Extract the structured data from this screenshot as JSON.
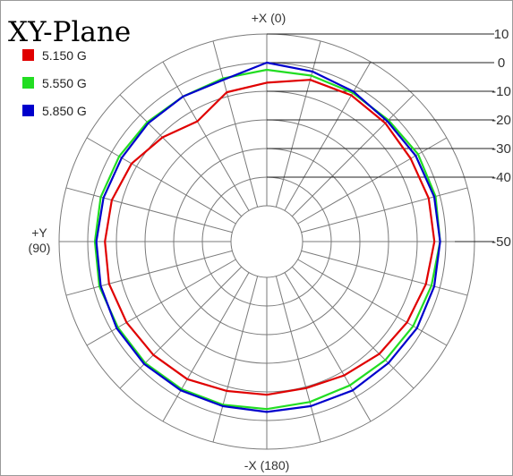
{
  "chart_data": {
    "type": "polar",
    "title": "XY-Plane",
    "direction_labels": {
      "top": "+X (0)",
      "left_line1": "+Y",
      "left_line2": "(90)",
      "bottom": "-X (180)"
    },
    "r_ticks": [
      "10",
      "0",
      "-10",
      "-20",
      "-30",
      "-40",
      "-50"
    ],
    "r_range": [
      -50,
      10
    ],
    "angle_grid_step_deg": 15,
    "grid": true,
    "legend_position": "top-left",
    "series": [
      {
        "name": "5.150 G",
        "color": "#e00000",
        "angles": [
          0,
          15,
          30,
          45,
          60,
          75,
          90,
          105,
          120,
          135,
          150,
          165,
          180,
          195,
          210,
          225,
          240,
          255,
          270,
          285,
          300,
          315,
          330,
          345
        ],
        "values": [
          -7,
          -8.5,
          -14,
          -11,
          -8,
          -6.5,
          -6,
          -5.5,
          -6,
          -6.5,
          -7,
          -8.5,
          -9,
          -9.5,
          -8.5,
          -7,
          -6,
          -5,
          -4,
          -4,
          -4.5,
          -4,
          -3.5,
          -4
        ]
      },
      {
        "name": "5.550 G",
        "color": "#22dd22",
        "angles": [
          0,
          15,
          30,
          45,
          60,
          75,
          90,
          105,
          120,
          135,
          150,
          165,
          180,
          195,
          210,
          225,
          240,
          255,
          270,
          285,
          300,
          315,
          330,
          345
        ],
        "values": [
          -2.5,
          -3.5,
          -4,
          -3.5,
          -3,
          -2.5,
          -2.5,
          -2,
          -2.5,
          -2.5,
          -3,
          -3.5,
          -4,
          -4.5,
          -4.5,
          -4,
          -3.5,
          -3,
          -2,
          -1.5,
          -1.5,
          -2.5,
          -2.5,
          -2.5
        ]
      },
      {
        "name": "5.850 G",
        "color": "#0000cc",
        "angles": [
          0,
          15,
          30,
          45,
          60,
          75,
          90,
          105,
          120,
          135,
          150,
          165,
          180,
          195,
          210,
          225,
          240,
          255,
          270,
          285,
          300,
          315,
          330,
          345
        ],
        "values": [
          0,
          -4,
          -4,
          -4,
          -4,
          -3.5,
          -3,
          -2.5,
          -2,
          -2,
          -2.5,
          -3,
          -3,
          -3,
          -2.5,
          -2.5,
          -2,
          -2,
          -2,
          -2,
          -2.5,
          -3,
          -2,
          -1
        ]
      }
    ]
  }
}
